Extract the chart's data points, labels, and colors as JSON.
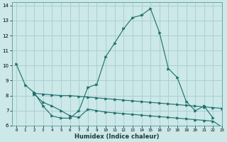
{
  "xlabel": "Humidex (Indice chaleur)",
  "bg_color": "#cce8e8",
  "grid_color": "#aad0d0",
  "line_color": "#1a6e6a",
  "xlim": [
    -0.5,
    23
  ],
  "ylim": [
    6,
    14.2
  ],
  "xticks": [
    0,
    1,
    2,
    3,
    4,
    5,
    6,
    7,
    8,
    9,
    10,
    11,
    12,
    13,
    14,
    15,
    16,
    17,
    18,
    19,
    20,
    21,
    22,
    23
  ],
  "yticks": [
    6,
    7,
    8,
    9,
    10,
    11,
    12,
    13,
    14
  ],
  "series": [
    {
      "x": [
        0,
        1,
        2,
        3,
        4,
        5,
        6,
        7,
        8,
        9,
        10,
        11,
        12,
        13,
        14,
        15,
        16,
        17,
        18,
        19,
        20,
        21,
        22
      ],
      "y": [
        10.1,
        8.7,
        8.2,
        7.3,
        6.65,
        6.5,
        6.5,
        7.0,
        8.55,
        8.75,
        10.6,
        11.5,
        12.45,
        13.2,
        13.35,
        13.8,
        12.2,
        9.8,
        9.2,
        7.6,
        7.0,
        7.3,
        6.5
      ]
    },
    {
      "x": [
        2,
        3,
        4,
        5,
        6,
        7,
        8,
        9,
        10,
        11,
        12,
        13,
        14,
        15,
        16,
        17,
        18,
        19,
        20,
        21,
        22,
        23
      ],
      "y": [
        8.15,
        8.1,
        8.05,
        8.0,
        8.0,
        7.95,
        7.9,
        7.85,
        7.8,
        7.75,
        7.7,
        7.65,
        7.6,
        7.55,
        7.5,
        7.45,
        7.4,
        7.35,
        7.3,
        7.25,
        7.2,
        7.15
      ]
    },
    {
      "x": [
        2,
        3,
        4,
        5,
        6,
        7,
        8,
        9,
        10,
        11,
        12,
        13,
        14,
        15,
        16,
        17,
        18,
        19,
        20,
        21,
        22,
        23
      ],
      "y": [
        8.1,
        7.55,
        7.3,
        7.0,
        6.65,
        6.55,
        7.1,
        7.0,
        6.9,
        6.85,
        6.8,
        6.75,
        6.7,
        6.65,
        6.6,
        6.55,
        6.5,
        6.45,
        6.4,
        6.35,
        6.3,
        5.9
      ]
    }
  ]
}
